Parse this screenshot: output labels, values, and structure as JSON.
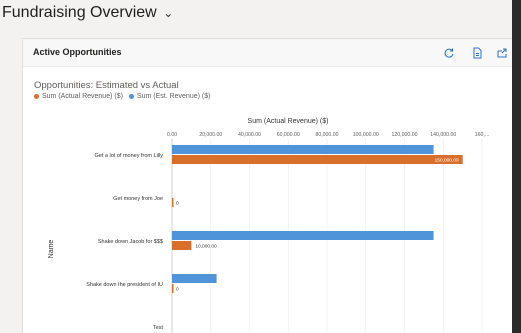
{
  "page": {
    "title": "Fundraising Overview",
    "title_chevron_icon": "chevron-down-icon"
  },
  "card": {
    "title": "Active Opportunities",
    "icons": [
      "refresh-icon",
      "document-icon",
      "expand-icon"
    ]
  },
  "chart_title": "Opportunities: Estimated vs Actual",
  "legend": [
    {
      "label": "Sum (Actual Revenue) ($)",
      "color": "#d86f2b"
    },
    {
      "label": "Sum (Est. Revenue) ($)",
      "color": "#4f93d8"
    }
  ],
  "chart_data": {
    "type": "bar",
    "orientation": "horizontal",
    "xlabel": "Sum (Actual Revenue) ($)",
    "ylabel": "Name",
    "xlim": [
      0,
      160000
    ],
    "x_ticks": [
      "0.00",
      "20,000.00",
      "40,000.00",
      "60,000.00",
      "80,000.00",
      "100,000.00",
      "120,000.00",
      "140,000.00",
      "160,..."
    ],
    "categories": [
      "Get a lot of money from Lilly",
      "Get money from Joe",
      "Shake down Jacob for $$$",
      "Shake down the president of IU",
      "Test"
    ],
    "series": [
      {
        "name": "Sum (Est. Revenue) ($)",
        "color": "#4f93d8",
        "values": [
          135000,
          null,
          135000,
          23000,
          null
        ]
      },
      {
        "name": "Sum (Actual Revenue) ($)",
        "color": "#d86f2b",
        "values": [
          150000,
          0,
          10000,
          0,
          null
        ]
      }
    ],
    "data_labels": [
      {
        "series": 1,
        "category": 0,
        "text": "150,000.00"
      },
      {
        "series": 1,
        "category": 1,
        "text": "0"
      },
      {
        "series": 1,
        "category": 2,
        "text": "10,000.00"
      },
      {
        "series": 1,
        "category": 3,
        "text": "0"
      }
    ],
    "grid": true,
    "legend_position": "top-left"
  }
}
